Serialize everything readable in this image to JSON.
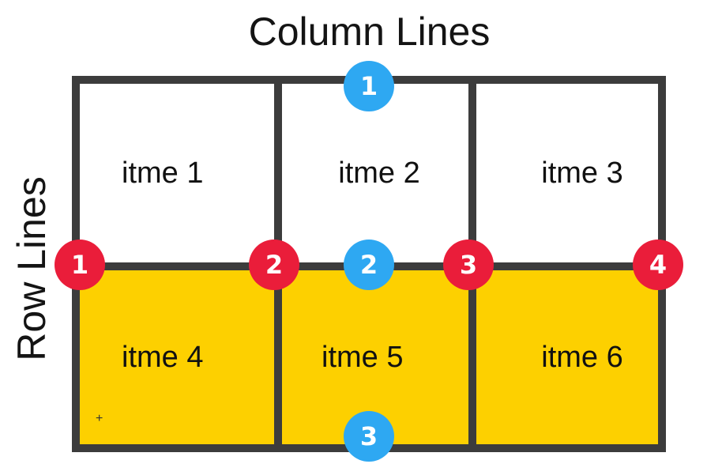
{
  "title": "Column Lines",
  "side_title": "Row Lines",
  "colors": {
    "border": "#3c3c3c",
    "highlight": "#fdd000",
    "row_line_marker": "#ea1d3a",
    "column_line_marker": "#2ea8f2"
  },
  "items": [
    "itme 1",
    "itme 2",
    "itme 3",
    "itme 4",
    "itme 5",
    "itme 6"
  ],
  "row_line_markers": [
    "1",
    "2",
    "3",
    "4"
  ],
  "column_line_markers": [
    "1",
    "2",
    "3"
  ],
  "cursor_icon": "crosshair-icon"
}
